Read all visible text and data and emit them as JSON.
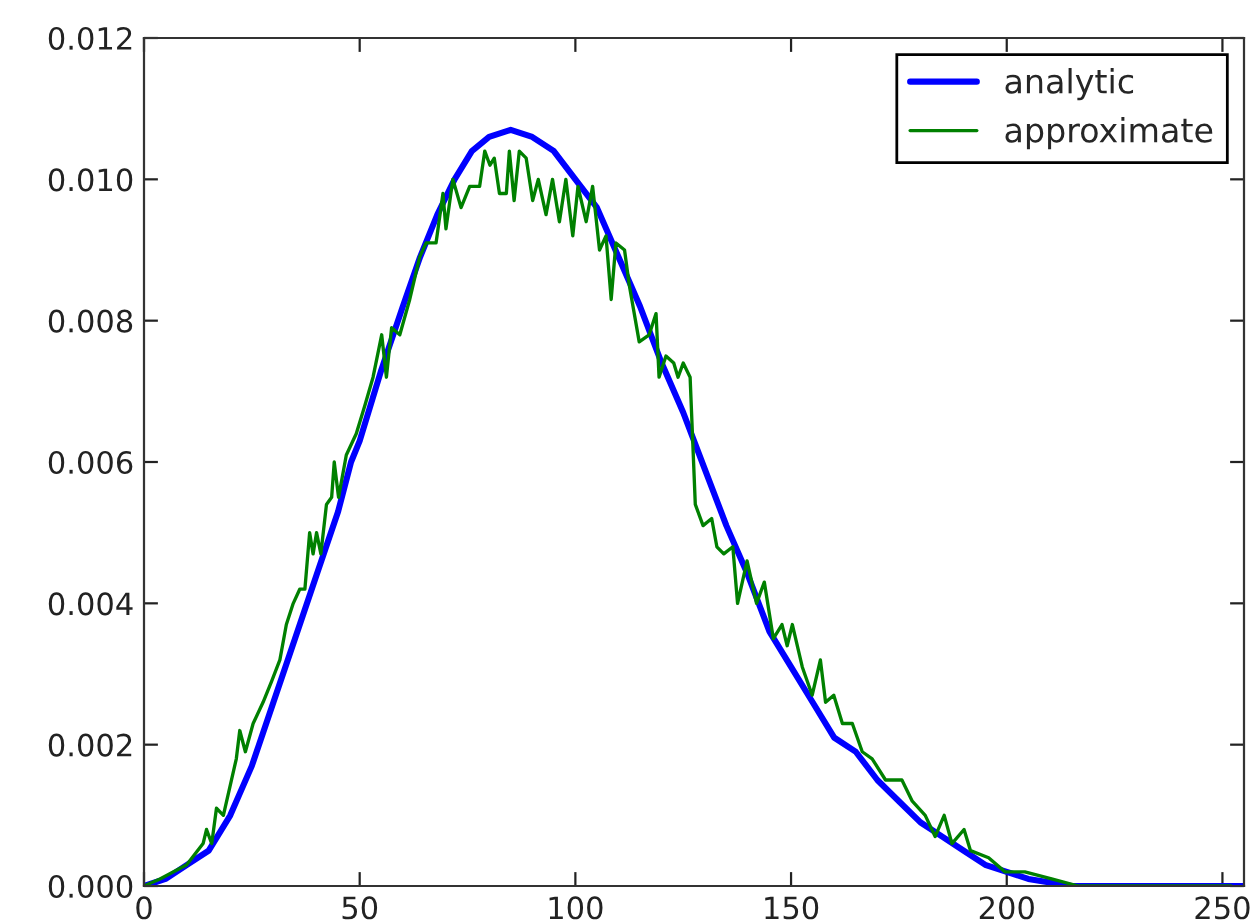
{
  "chart_data": {
    "type": "line",
    "xlim": [
      0,
      255
    ],
    "xticks": [
      0,
      50,
      100,
      150,
      200,
      250
    ],
    "ylim": [
      0,
      0.012
    ],
    "yticks": [
      {
        "value": 0,
        "label": "0.000"
      },
      {
        "value": 0.002,
        "label": "0.002"
      },
      {
        "value": 0.004,
        "label": "0.004"
      },
      {
        "value": 0.006,
        "label": "0.006"
      },
      {
        "value": 0.008,
        "label": "0.008"
      },
      {
        "value": 0.01,
        "label": "0.010"
      },
      {
        "value": 0.012,
        "label": "0.012"
      }
    ],
    "legend": "top right",
    "line_style": "solid",
    "series": [
      {
        "name": "analytic",
        "color": "#0000ff",
        "x": [
          0,
          5,
          10,
          15,
          20,
          25,
          30,
          35,
          40,
          45,
          48,
          50,
          55,
          60,
          64,
          68,
          72,
          76,
          80,
          85,
          90,
          95,
          100,
          105,
          110,
          115,
          120,
          125,
          130,
          135,
          140,
          145,
          150,
          155,
          160,
          165,
          170,
          175,
          180,
          185,
          190,
          195,
          200,
          205,
          215,
          255
        ],
        "values": [
          0,
          0.0001,
          0.0003,
          0.0005,
          0.001,
          0.0017,
          0.0026,
          0.0035,
          0.0044,
          0.0053,
          0.006,
          0.0063,
          0.0073,
          0.0082,
          0.0089,
          0.0095,
          0.01,
          0.0104,
          0.0106,
          0.0107,
          0.0106,
          0.0104,
          0.01,
          0.0096,
          0.0089,
          0.0082,
          0.0074,
          0.0067,
          0.0059,
          0.0051,
          0.0044,
          0.0036,
          0.0031,
          0.0026,
          0.0021,
          0.0019,
          0.0015,
          0.0012,
          0.0009,
          0.0007,
          0.0005,
          0.0003,
          0.0002,
          0.0001,
          0,
          0
        ]
      },
      {
        "name": "approximate",
        "color": "#008000",
        "x": [
          0,
          3.7,
          9.9,
          13.7,
          14.5,
          15.7,
          16.8,
          18.4,
          19.9,
          21.4,
          22.2,
          23.5,
          25.3,
          27.6,
          29.6,
          31.5,
          33,
          34.6,
          36.1,
          37.3,
          38.4,
          39.2,
          40,
          41,
          42.3,
          43.5,
          44.1,
          45.1,
          46.9,
          49.2,
          51.2,
          53.1,
          55.1,
          56.2,
          57.4,
          59.3,
          61.6,
          63.9,
          65.4,
          67.7,
          69.3,
          70,
          71.6,
          73.5,
          75.5,
          77.8,
          79,
          80.2,
          81.2,
          82.4,
          84,
          84.7,
          85.8,
          87,
          88.6,
          90.1,
          91.4,
          93.2,
          94.7,
          96.3,
          97.8,
          99.4,
          100.6,
          102.5,
          104,
          105.6,
          107.1,
          108.3,
          109.4,
          111.4,
          112.5,
          114.8,
          117.1,
          118.7,
          119.4,
          121,
          122.8,
          123.8,
          125,
          126.6,
          127.8,
          129.6,
          131.6,
          132.8,
          134.4,
          136.5,
          137.6,
          139.8,
          142,
          143.8,
          145.9,
          147.9,
          149.1,
          150.3,
          152.6,
          154.9,
          156.8,
          158,
          159.9,
          161.9,
          164.2,
          166.5,
          168.8,
          171.9,
          175.7,
          178.1,
          181.1,
          183.4,
          185.5,
          187.3,
          190.1,
          191.6,
          195.8,
          199.6,
          204.2,
          210.4,
          216.6,
          228.9,
          252
        ],
        "values": [
          0,
          0.0001,
          0.0003,
          0.0006,
          0.0008,
          0.0006,
          0.0011,
          0.001,
          0.0014,
          0.0018,
          0.0022,
          0.0019,
          0.0023,
          0.0026,
          0.0029,
          0.0032,
          0.0037,
          0.004,
          0.0042,
          0.0042,
          0.005,
          0.0047,
          0.005,
          0.0047,
          0.0054,
          0.0055,
          0.006,
          0.0055,
          0.0061,
          0.0064,
          0.0068,
          0.0072,
          0.0078,
          0.0072,
          0.0079,
          0.0078,
          0.0083,
          0.0089,
          0.0091,
          0.0091,
          0.0098,
          0.0093,
          0.01,
          0.0096,
          0.0099,
          0.0099,
          0.0104,
          0.0102,
          0.0103,
          0.0098,
          0.0098,
          0.0104,
          0.0097,
          0.0104,
          0.0103,
          0.0097,
          0.01,
          0.0095,
          0.01,
          0.0094,
          0.01,
          0.0092,
          0.0099,
          0.0094,
          0.0099,
          0.009,
          0.0092,
          0.0083,
          0.0091,
          0.009,
          0.0085,
          0.0077,
          0.0078,
          0.0081,
          0.0072,
          0.0075,
          0.0074,
          0.0072,
          0.0074,
          0.0072,
          0.0054,
          0.0051,
          0.0052,
          0.0048,
          0.0047,
          0.0048,
          0.004,
          0.0046,
          0.004,
          0.0043,
          0.0035,
          0.0037,
          0.0034,
          0.0037,
          0.0031,
          0.0027,
          0.0032,
          0.0026,
          0.0027,
          0.0023,
          0.0023,
          0.0019,
          0.0018,
          0.0015,
          0.0015,
          0.0012,
          0.001,
          0.0007,
          0.001,
          0.0006,
          0.0008,
          0.0005,
          0.0004,
          0.0002,
          0.0002,
          0.0001,
          0,
          0,
          0
        ]
      }
    ]
  }
}
